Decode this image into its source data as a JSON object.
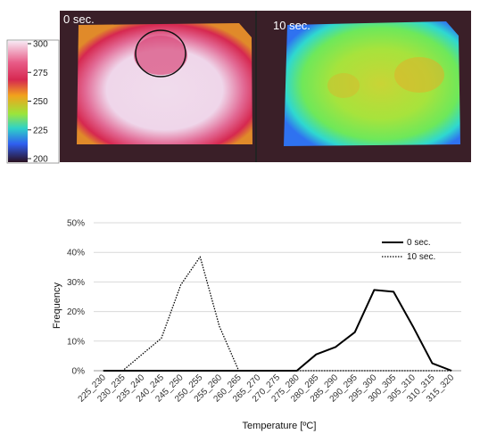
{
  "thermal": {
    "panels": [
      {
        "label": "0 sec."
      },
      {
        "label": "10 sec."
      }
    ],
    "colorbar": {
      "ticks": [
        "300",
        "275",
        "250",
        "225",
        "200"
      ],
      "colors": [
        "#f5dff0",
        "#d62850",
        "#f2a21c",
        "#9ce53a",
        "#2f86f0",
        "#2a1020"
      ]
    }
  },
  "chart_data": {
    "type": "line",
    "categories": [
      "225_230",
      "230_235",
      "235_240",
      "240_245",
      "245_250",
      "250_255",
      "255_260",
      "260_265",
      "265_270",
      "270_275",
      "275_280",
      "280_285",
      "285_290",
      "290_295",
      "295_300",
      "300_305",
      "305_310",
      "310_315",
      "315_320"
    ],
    "series": [
      {
        "name": "0 sec.",
        "style": "solid",
        "values": [
          0,
          0,
          0,
          0,
          0,
          0,
          0,
          0,
          0,
          0,
          0,
          5.5,
          8,
          13,
          27.3,
          26.7,
          15,
          2.5,
          0
        ]
      },
      {
        "name": "10 sec.",
        "style": "dotted",
        "values": [
          0,
          0,
          5.5,
          11,
          29,
          38.5,
          15,
          0,
          0,
          0,
          0,
          0,
          0,
          0,
          0,
          0,
          0,
          0,
          0
        ]
      }
    ],
    "xlabel": "Temperature [ºC]",
    "ylabel": "Frequency",
    "ylim": [
      0,
      50
    ],
    "yticks": [
      "0%",
      "10%",
      "20%",
      "30%",
      "40%",
      "50%"
    ],
    "grid": true,
    "legend": "top-right"
  }
}
